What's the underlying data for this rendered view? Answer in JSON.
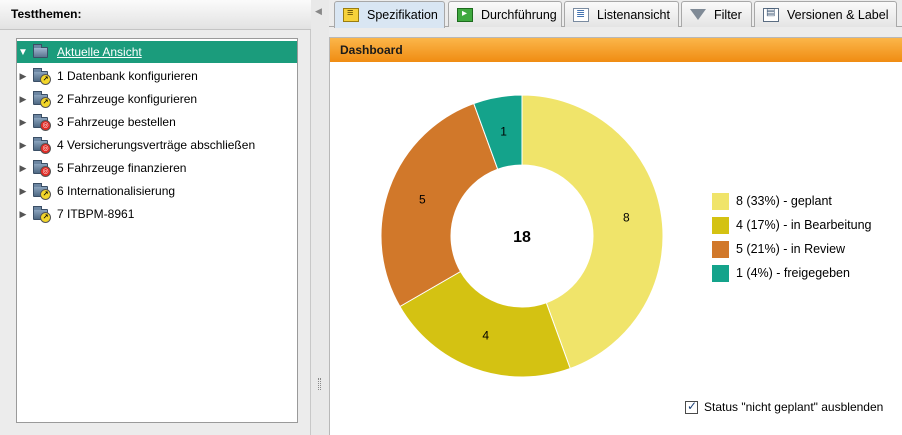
{
  "sidebar": {
    "title": "Testthemen:",
    "root": {
      "label": "Aktuelle Ansicht"
    },
    "items": [
      {
        "label": "1 Datenbank konfigurieren",
        "badge": "yellow",
        "icon": "clock-folder-icon"
      },
      {
        "label": "2 Fahrzeuge konfigurieren",
        "badge": "yellow",
        "icon": "clock-folder-icon"
      },
      {
        "label": "3 Fahrzeuge bestellen",
        "badge": "red",
        "icon": "review-folder-icon"
      },
      {
        "label": "4 Versicherungsverträge abschließen",
        "badge": "red",
        "icon": "review-folder-icon"
      },
      {
        "label": "5 Fahrzeuge finanzieren",
        "badge": "red",
        "icon": "review-folder-icon"
      },
      {
        "label": "6 Internationalisierung",
        "badge": "yellow",
        "icon": "progress-folder-icon"
      },
      {
        "label": "7 ITBPM-8961",
        "badge": "yellow",
        "icon": "progress-folder-icon"
      }
    ]
  },
  "tabs": [
    {
      "label": "Spezifikation",
      "icon": "specification-icon",
      "active": true
    },
    {
      "label": "Durchführung",
      "icon": "execution-icon",
      "active": false
    },
    {
      "label": "Listenansicht",
      "icon": "list-view-icon",
      "active": false
    },
    {
      "label": "Filter",
      "icon": "filter-icon",
      "active": false
    },
    {
      "label": "Versionen & Label",
      "icon": "versions-icon",
      "active": false
    }
  ],
  "dashboard": {
    "title": "Dashboard",
    "checkbox_label": "Status \"nicht geplant\" ausblenden",
    "checkbox_checked": true
  },
  "chart_data": {
    "type": "pie",
    "style": "donut",
    "total_label": "18",
    "slices": [
      {
        "value": 8,
        "label": "8",
        "legend": "8 (33%) - geplant",
        "color": "#f0e46a"
      },
      {
        "value": 4,
        "label": "4",
        "legend": "4 (17%) - in Bearbeitung",
        "color": "#d4c212"
      },
      {
        "value": 5,
        "label": "5",
        "legend": "5 (21%) - in Review",
        "color": "#d1782a"
      },
      {
        "value": 1,
        "label": "1",
        "legend": "1 (4%) - freigegeben",
        "color": "#14a38b"
      }
    ],
    "legend_position": "right"
  }
}
